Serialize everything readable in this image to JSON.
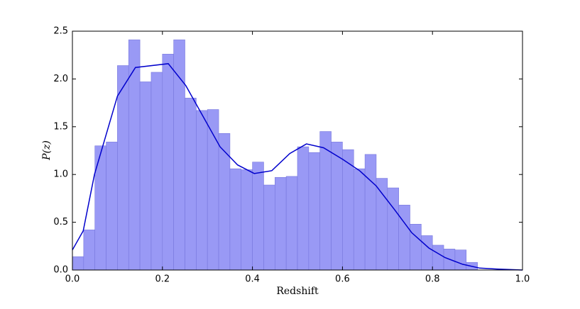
{
  "chart_data": {
    "type": "histogram",
    "xlabel": "Redshift",
    "ylabel": "P(z)",
    "bins": [
      0,
      0.025,
      0.05,
      0.075,
      0.1,
      0.125,
      0.15,
      0.175,
      0.2,
      0.225,
      0.25,
      0.275,
      0.3,
      0.325,
      0.35,
      0.375,
      0.4,
      0.425,
      0.45,
      0.475,
      0.5,
      0.525,
      0.55,
      0.575,
      0.6,
      0.625,
      0.65,
      0.675,
      0.7,
      0.725,
      0.75,
      0.775,
      0.8,
      0.825,
      0.85,
      0.875,
      0.9
    ],
    "values": [
      0.14,
      0.42,
      1.3,
      1.34,
      2.14,
      2.41,
      1.97,
      2.07,
      2.26,
      2.41,
      1.8,
      1.67,
      1.68,
      1.43,
      1.06,
      1.05,
      1.13,
      0.89,
      0.97,
      0.98,
      1.29,
      1.23,
      1.45,
      1.34,
      1.26,
      1.06,
      1.21,
      0.96,
      0.86,
      0.68,
      0.48,
      0.36,
      0.26,
      0.22,
      0.21,
      0.08
    ],
    "color": "#9999f5",
    "line": {
      "color": "#0000cc",
      "x": [
        0.0,
        0.024,
        0.049,
        0.1,
        0.14,
        0.213,
        0.252,
        0.328,
        0.367,
        0.404,
        0.443,
        0.483,
        0.52,
        0.558,
        0.6,
        0.638,
        0.675,
        0.716,
        0.754,
        0.792,
        0.828,
        0.867,
        0.905,
        0.943,
        1.0
      ],
      "values": [
        0.21,
        0.41,
        1.0,
        1.82,
        2.12,
        2.16,
        1.93,
        1.29,
        1.1,
        1.01,
        1.04,
        1.22,
        1.32,
        1.28,
        1.16,
        1.04,
        0.88,
        0.63,
        0.39,
        0.23,
        0.13,
        0.06,
        0.02,
        0.01,
        0.0
      ]
    },
    "xlim": [
      0,
      1
    ],
    "ylim": [
      0,
      2.5
    ],
    "xticks": [
      {
        "value": 0,
        "label": "0.0"
      },
      {
        "value": 0.2,
        "label": "0.2"
      },
      {
        "value": 0.4,
        "label": "0.4"
      },
      {
        "value": 0.6,
        "label": "0.6"
      },
      {
        "value": 0.8,
        "label": "0.8"
      },
      {
        "value": 1,
        "label": "1.0"
      }
    ],
    "yticks": [
      {
        "value": 0,
        "label": "0.0"
      },
      {
        "value": 0.5,
        "label": "0.5"
      },
      {
        "value": 1,
        "label": "1.0"
      },
      {
        "value": 1.5,
        "label": "1.5"
      },
      {
        "value": 2,
        "label": "2.0"
      },
      {
        "value": 2.5,
        "label": "2.5"
      }
    ]
  }
}
